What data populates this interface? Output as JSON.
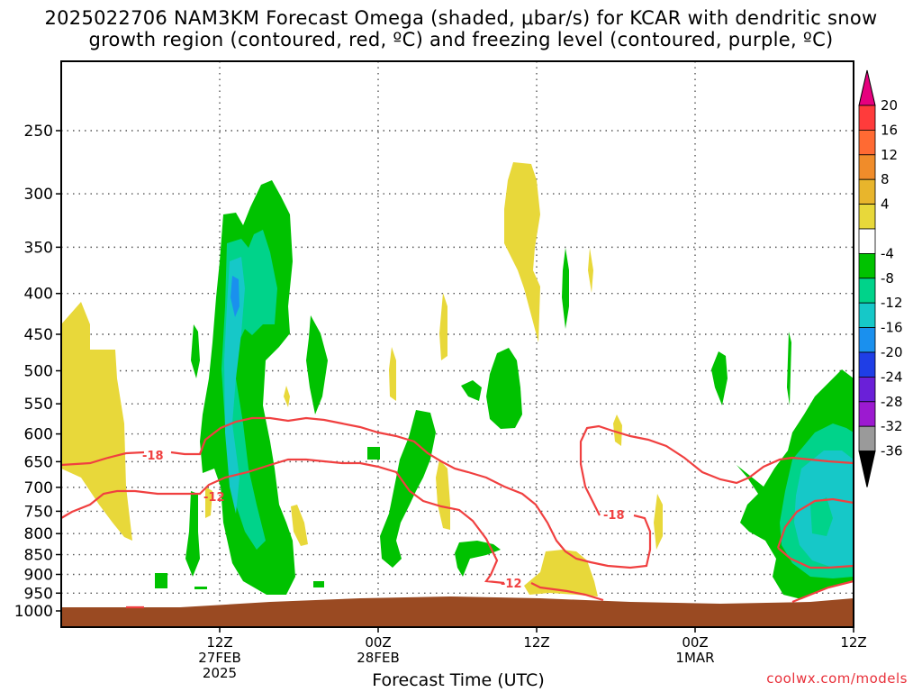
{
  "chart_data": {
    "type": "heatmap",
    "title_line1": "2025022706 NAM3KM Forecast Omega (shaded, μbar/s) for KCAR with dendritic snow",
    "title_line2": "growth region (contoured, red, ºC) and freezing level (contoured, purple, ºC)",
    "xlabel": "Forecast Time (UTC)",
    "watermark": "coolwx.com/models",
    "y_axis": {
      "scale": "log-pressure",
      "ticks": [
        "250",
        "300",
        "350",
        "400",
        "450",
        "500",
        "550",
        "600",
        "650",
        "700",
        "750",
        "800",
        "850",
        "900",
        "950",
        "1000"
      ],
      "range": [
        200,
        1000
      ]
    },
    "x_axis": {
      "range_hours": [
        6,
        36
      ],
      "ticks": [
        {
          "hour": 12,
          "line1": "12Z",
          "line2": "27FEB",
          "line3": "2025"
        },
        {
          "hour": 18,
          "line1": "00Z",
          "line2": "28FEB",
          "line3": ""
        },
        {
          "hour": 24,
          "line1": "12Z",
          "line2": "",
          "line3": ""
        },
        {
          "hour": 30,
          "line1": "00Z",
          "line2": "1MAR",
          "line3": ""
        },
        {
          "hour": 36,
          "line1": "12Z",
          "line2": "",
          "line3": ""
        }
      ]
    },
    "colorbar": {
      "labels": [
        "20",
        "16",
        "12",
        "8",
        "4",
        "-4",
        "-8",
        "-12",
        "-16",
        "-20",
        "-24",
        "-28",
        "-32",
        "-36"
      ],
      "colors": [
        "#e6007e",
        "#ff3b3b",
        "#ff6a33",
        "#f08c2a",
        "#e8b52c",
        "#e8d83a",
        "#ffffff",
        "#00c200",
        "#00d38a",
        "#16c8c8",
        "#1a90ee",
        "#1f3ee6",
        "#6a20d8",
        "#9c1ad0",
        "#9a9a9a",
        "#000000"
      ]
    },
    "contour_labels": [
      "-18",
      "-12",
      "-18",
      "-12"
    ],
    "colors": {
      "yellow": "#e8d83a",
      "green": "#00c200",
      "teal": "#00d38a",
      "cyan": "#16c8c8",
      "blue": "#1a90ee",
      "red_contour": "#f04040",
      "ground": "#9a4a22"
    }
  }
}
